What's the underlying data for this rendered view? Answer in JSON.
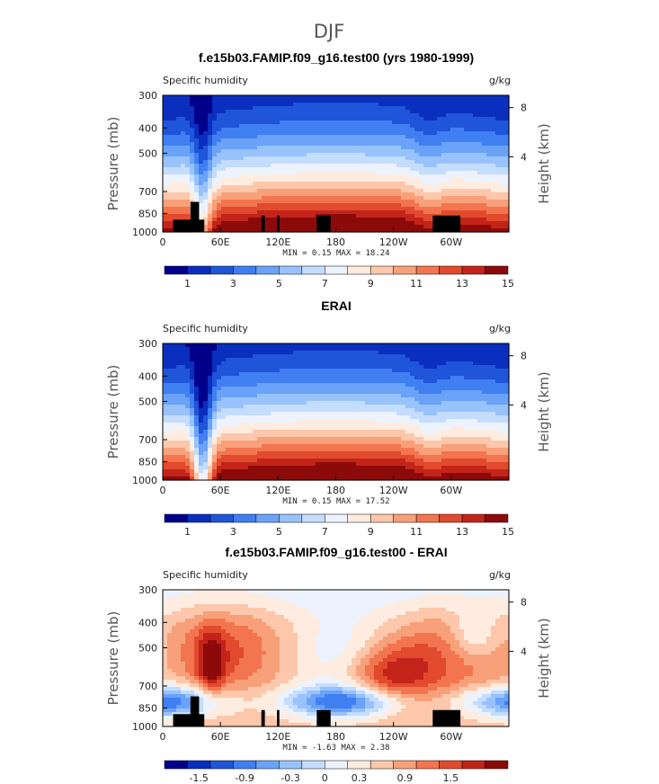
{
  "figure": {
    "title": "DJF"
  },
  "colormaps": {
    "abs": [
      "#00008a",
      "#0a2fbf",
      "#1f55d9",
      "#3f7ff2",
      "#6aa2f8",
      "#98c2fc",
      "#c4dcfd",
      "#ecf3fe",
      "#fdecdf",
      "#fcc7ab",
      "#f8a079",
      "#f2754f",
      "#e14a2c",
      "#c2241a",
      "#8c0a0a"
    ],
    "diff": [
      "#00008a",
      "#0a2fbf",
      "#1f55d9",
      "#3f7ff2",
      "#6aa2f8",
      "#98c2fc",
      "#c4dcfd",
      "#ecf3fe",
      "#fdecdf",
      "#fcc7ab",
      "#f8a079",
      "#f2754f",
      "#e14a2c",
      "#c2241a",
      "#8c0a0a"
    ]
  },
  "panels": [
    {
      "id": "model",
      "title": "f.e15b03.FAMIP.f09_g16.test00 (yrs 1980-1999)",
      "left_label": "Specific humidity",
      "units": "g/kg",
      "ylabel": "Pressure (mb)",
      "y2label": "Height (km)",
      "yticks": [
        "300",
        "400",
        "500",
        "700",
        "850",
        "1000"
      ],
      "y2ticks": [
        "8",
        "4"
      ],
      "xticks": [
        "0",
        "60E",
        "120E",
        "180",
        "120W",
        "60W"
      ],
      "minmax": "MIN =    0.15   MAX =   18.24",
      "colorbar_labels": [
        "1",
        "3",
        "5",
        "7",
        "9",
        "11",
        "13",
        "15"
      ],
      "kind": "abs",
      "terrain": true
    },
    {
      "id": "obs",
      "title": "ERAI",
      "left_label": "Specific humidity",
      "units": "g/kg",
      "ylabel": "Pressure (mb)",
      "y2label": "Height (km)",
      "yticks": [
        "300",
        "400",
        "500",
        "700",
        "850",
        "1000"
      ],
      "y2ticks": [
        "8",
        "4"
      ],
      "xticks": [
        "0",
        "60E",
        "120E",
        "180",
        "120W",
        "60W"
      ],
      "minmax": "MIN =    0.15   MAX =   17.52",
      "colorbar_labels": [
        "1",
        "3",
        "5",
        "7",
        "9",
        "11",
        "13",
        "15"
      ],
      "kind": "abs",
      "terrain": false
    },
    {
      "id": "diff",
      "title": "f.e15b03.FAMIP.f09_g16.test00 - ERAI",
      "left_label": "Specific humidity",
      "units": "g/kg",
      "ylabel": "Pressure (mb)",
      "y2label": "Height (km)",
      "yticks": [
        "300",
        "400",
        "500",
        "700",
        "850",
        "1000"
      ],
      "y2ticks": [
        "8",
        "4"
      ],
      "xticks": [
        "0",
        "60E",
        "120E",
        "180",
        "120W",
        "60W"
      ],
      "minmax": "MIN =   -1.63   MAX =    2.38",
      "colorbar_labels": [
        "-1.5",
        "-0.9",
        "-0.3",
        "0",
        "0.3",
        "0.9",
        "1.5"
      ],
      "kind": "diff",
      "terrain": true
    }
  ],
  "chart_data": [
    {
      "type": "heatmap",
      "title": "f.e15b03.FAMIP.f09_g16.test00 (yrs 1980-1999)",
      "ylabel": "Pressure (mb)",
      "xlabel": "",
      "x_range": [
        0,
        360
      ],
      "x_ticks": [
        "0",
        "60E",
        "120E",
        "180",
        "120W",
        "60W"
      ],
      "y_ticks_pressure_mb": [
        300,
        400,
        500,
        700,
        850,
        1000
      ],
      "y2_ticks_height_km": [
        8,
        4
      ],
      "contour_levels": [
        0,
        1,
        2,
        3,
        4,
        5,
        6,
        7,
        8,
        9,
        10,
        11,
        12,
        13,
        14,
        15,
        16
      ],
      "min": 0.15,
      "max": 18.24,
      "units": "g/kg"
    },
    {
      "type": "heatmap",
      "title": "ERAI",
      "ylabel": "Pressure (mb)",
      "x_range": [
        0,
        360
      ],
      "x_ticks": [
        "0",
        "60E",
        "120E",
        "180",
        "120W",
        "60W"
      ],
      "y_ticks_pressure_mb": [
        300,
        400,
        500,
        700,
        850,
        1000
      ],
      "y2_ticks_height_km": [
        8,
        4
      ],
      "contour_levels": [
        0,
        1,
        2,
        3,
        4,
        5,
        6,
        7,
        8,
        9,
        10,
        11,
        12,
        13,
        14,
        15,
        16
      ],
      "min": 0.15,
      "max": 17.52,
      "units": "g/kg"
    },
    {
      "type": "heatmap",
      "title": "f.e15b03.FAMIP.f09_g16.test00 - ERAI",
      "ylabel": "Pressure (mb)",
      "x_range": [
        0,
        360
      ],
      "x_ticks": [
        "0",
        "60E",
        "120E",
        "180",
        "120W",
        "60W"
      ],
      "y_ticks_pressure_mb": [
        300,
        400,
        500,
        700,
        850,
        1000
      ],
      "y2_ticks_height_km": [
        8,
        4
      ],
      "contour_levels": [
        -1.8,
        -1.5,
        -1.2,
        -0.9,
        -0.6,
        -0.3,
        0,
        0.3,
        0.6,
        0.9,
        1.2,
        1.5,
        1.8
      ],
      "min": -1.63,
      "max": 2.38,
      "units": "g/kg"
    }
  ]
}
